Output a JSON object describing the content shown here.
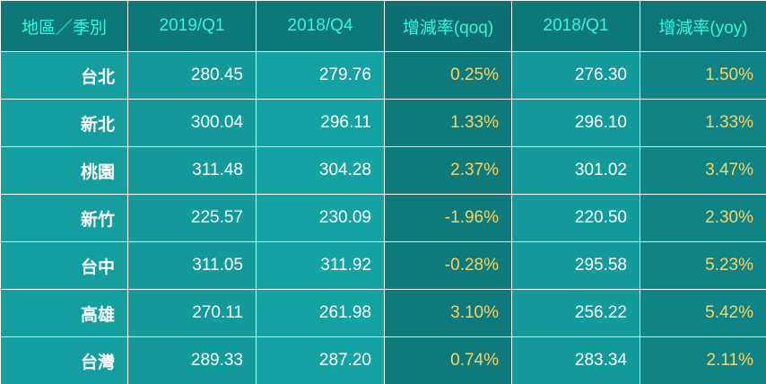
{
  "header": {
    "region": "地區／季別",
    "col1": "2019/Q1",
    "col2": "2018/Q4",
    "col3": "增減率(qoq)",
    "col4": "2018/Q1",
    "col5": "增減率(yoy)"
  },
  "rows": [
    {
      "region": "台北",
      "q1_2019": "280.45",
      "q4_2018": "279.76",
      "qoq": "0.25%",
      "q1_2018": "276.30",
      "yoy": "1.50%"
    },
    {
      "region": "新北",
      "q1_2019": "300.04",
      "q4_2018": "296.11",
      "qoq": "1.33%",
      "q1_2018": "296.10",
      "yoy": "1.33%"
    },
    {
      "region": "桃園",
      "q1_2019": "311.48",
      "q4_2018": "304.28",
      "qoq": "2.37%",
      "q1_2018": "301.02",
      "yoy": "3.47%"
    },
    {
      "region": "新竹",
      "q1_2019": "225.57",
      "q4_2018": "230.09",
      "qoq": "-1.96%",
      "q1_2018": "220.50",
      "yoy": "2.30%"
    },
    {
      "region": "台中",
      "q1_2019": "311.05",
      "q4_2018": "311.92",
      "qoq": "-0.28%",
      "q1_2018": "295.58",
      "yoy": "5.23%"
    },
    {
      "region": "高雄",
      "q1_2019": "270.11",
      "q4_2018": "261.98",
      "qoq": "3.10%",
      "q1_2018": "256.22",
      "yoy": "5.42%"
    },
    {
      "region": "台灣",
      "q1_2019": "289.33",
      "q4_2018": "287.20",
      "qoq": "0.74%",
      "q1_2018": "283.34",
      "yoy": "2.11%"
    }
  ]
}
